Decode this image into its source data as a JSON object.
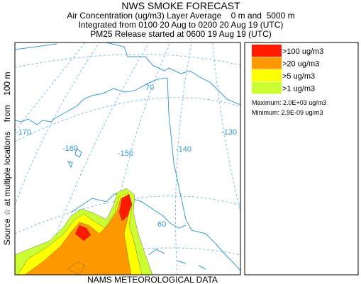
{
  "header": {
    "title": "NWS SMOKE FORECAST",
    "lines": [
      "Air Concentration (ug/m3) Layer Average    0 m and  5000 m",
      "Integrated from 0100 20 Aug to 0200 20 Aug 19 (UTC)",
      "PM25 Release started at 0600 19 Aug 19 (UTC)"
    ]
  },
  "side_label": "Source ☆ at multiple locations    from    100 m",
  "map": {
    "graticule_labels": [
      "70",
      "-170",
      "-160",
      "-150",
      "-140",
      "-130",
      "60"
    ]
  },
  "legend": {
    "items": [
      {
        "label": ">100 ug/m3",
        "color": "#ff1a00"
      },
      {
        "label": ">20 ug/m3",
        "color": "#ff9900"
      },
      {
        "label": ">5 ug/m3",
        "color": "#ffff00"
      },
      {
        "label": ">1 ug/m3",
        "color": "#ccff33"
      }
    ],
    "maximum": "Maximum: 2.0E+03 ug/m3",
    "minimum": "Minimum: 2.9E-09 ug/m3"
  },
  "footer": "NAMS METEOROLOGICAL DATA"
}
